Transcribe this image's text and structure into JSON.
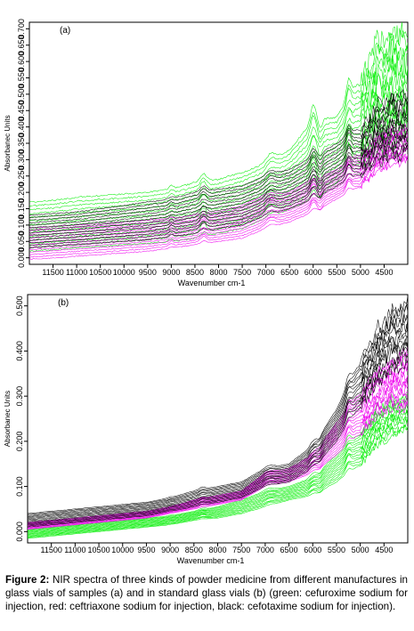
{
  "chart_data": [
    {
      "type": "line",
      "panel_label": "(a)",
      "xlabel": "Wavenumber cm-1",
      "ylabel": "Absorbanec Units",
      "xlim": [
        12000,
        4000
      ],
      "ylim": [
        -0.02,
        0.72
      ],
      "x_ticks": [
        11500,
        11000,
        10500,
        10000,
        9500,
        9000,
        8500,
        8000,
        7500,
        7000,
        6500,
        6000,
        5500,
        5000,
        4500
      ],
      "x_tick_labels": [
        "11500",
        "11000",
        "10500",
        "10000",
        "9500",
        "9000",
        "8500",
        "8000",
        "7500",
        "7000",
        "6500",
        "6000",
        "5500",
        "5000",
        "4500"
      ],
      "y_ticks": [
        0,
        0.05,
        0.1,
        0.15,
        0.2,
        0.25,
        0.3,
        0.35,
        0.4,
        0.45,
        0.5,
        0.55,
        0.6,
        0.65,
        0.7
      ],
      "y_tick_labels": [
        "0.000",
        "0.050",
        "0.100",
        "0.150",
        "0.200",
        "0.250",
        "0.300",
        "0.350",
        "0.400",
        "0.450",
        "0.500",
        "0.550",
        "0.600",
        "0.650",
        "0.700"
      ],
      "series": [
        {
          "color": "#00ee00",
          "x": [
            12000,
            11500,
            11000,
            10500,
            10000,
            9500,
            9000,
            8500,
            8000,
            7500,
            7000,
            6500,
            6000,
            5500,
            5000,
            4500,
            4000
          ],
          "y_min": [
            0.02,
            0.025,
            0.03,
            0.035,
            0.04,
            0.045,
            0.05,
            0.06,
            0.075,
            0.09,
            0.12,
            0.15,
            0.18,
            0.23,
            0.3,
            0.35,
            0.38
          ],
          "y_max": [
            0.17,
            0.175,
            0.185,
            0.19,
            0.195,
            0.2,
            0.21,
            0.23,
            0.24,
            0.26,
            0.29,
            0.33,
            0.42,
            0.43,
            0.55,
            0.66,
            0.69
          ]
        },
        {
          "color": "#ee00ee",
          "x": [
            12000,
            11500,
            11000,
            10500,
            10000,
            9500,
            9000,
            8500,
            8000,
            7500,
            7000,
            6500,
            6000,
            5500,
            5000,
            4500,
            4000
          ],
          "y_min": [
            -0.005,
            0.0,
            0.005,
            0.01,
            0.015,
            0.02,
            0.03,
            0.04,
            0.05,
            0.06,
            0.09,
            0.11,
            0.14,
            0.18,
            0.22,
            0.27,
            0.3
          ],
          "y_max": [
            0.09,
            0.095,
            0.1,
            0.105,
            0.11,
            0.115,
            0.12,
            0.13,
            0.14,
            0.16,
            0.19,
            0.2,
            0.24,
            0.27,
            0.32,
            0.38,
            0.4
          ]
        },
        {
          "color": "#000000",
          "x": [
            12000,
            11500,
            11000,
            10500,
            10000,
            9500,
            9000,
            8500,
            8000,
            7500,
            7000,
            6500,
            6000,
            5500,
            5000,
            4500,
            4000
          ],
          "y_min": [
            0.03,
            0.035,
            0.04,
            0.045,
            0.05,
            0.055,
            0.065,
            0.075,
            0.09,
            0.1,
            0.13,
            0.15,
            0.18,
            0.22,
            0.26,
            0.3,
            0.32
          ],
          "y_max": [
            0.13,
            0.135,
            0.14,
            0.15,
            0.16,
            0.17,
            0.18,
            0.2,
            0.21,
            0.22,
            0.25,
            0.27,
            0.31,
            0.35,
            0.4,
            0.47,
            0.5
          ]
        }
      ]
    },
    {
      "type": "line",
      "panel_label": "(b)",
      "xlabel": "Wavenumber cm-1",
      "ylabel": "Absorbanec Units",
      "xlim": [
        12000,
        4000
      ],
      "ylim": [
        -0.025,
        0.525
      ],
      "x_ticks": [
        11500,
        11000,
        10500,
        10000,
        9500,
        9000,
        8500,
        8000,
        7500,
        7000,
        6500,
        6000,
        5500,
        5000,
        4500
      ],
      "x_tick_labels": [
        "11500",
        "11000",
        "10500",
        "10000",
        "9500",
        "9000",
        "8500",
        "8000",
        "7500",
        "7000",
        "6500",
        "6000",
        "5500",
        "5000",
        "4500"
      ],
      "y_ticks": [
        0,
        0.1,
        0.2,
        0.3,
        0.4,
        0.5
      ],
      "y_tick_labels": [
        "0.000",
        "0.100",
        "0.200",
        "0.300",
        "0.400",
        "0.500"
      ],
      "series": [
        {
          "color": "#00ee00",
          "x": [
            12000,
            11500,
            11000,
            10500,
            10000,
            9500,
            9000,
            8500,
            8000,
            7500,
            7000,
            6500,
            6000,
            5500,
            5000,
            4500,
            4000
          ],
          "y_min": [
            -0.015,
            -0.01,
            -0.005,
            0.0,
            0.005,
            0.01,
            0.015,
            0.025,
            0.03,
            0.04,
            0.055,
            0.07,
            0.08,
            0.11,
            0.15,
            0.2,
            0.23
          ],
          "y_max": [
            0.005,
            0.01,
            0.015,
            0.02,
            0.025,
            0.03,
            0.035,
            0.045,
            0.055,
            0.07,
            0.09,
            0.1,
            0.12,
            0.17,
            0.22,
            0.28,
            0.3
          ]
        },
        {
          "color": "#ee00ee",
          "x": [
            12000,
            11500,
            11000,
            10500,
            10000,
            9500,
            9000,
            8500,
            8000,
            7500,
            7000,
            6500,
            6000,
            5500,
            5000,
            4500,
            4000
          ],
          "y_min": [
            0.005,
            0.01,
            0.015,
            0.02,
            0.025,
            0.03,
            0.04,
            0.05,
            0.06,
            0.07,
            0.1,
            0.11,
            0.13,
            0.17,
            0.22,
            0.26,
            0.28
          ],
          "y_max": [
            0.02,
            0.025,
            0.03,
            0.035,
            0.04,
            0.045,
            0.055,
            0.07,
            0.08,
            0.09,
            0.13,
            0.14,
            0.17,
            0.24,
            0.31,
            0.36,
            0.4
          ]
        },
        {
          "color": "#000000",
          "x": [
            12000,
            11500,
            11000,
            10500,
            10000,
            9500,
            9000,
            8500,
            8000,
            7500,
            7000,
            6500,
            6000,
            5500,
            5000,
            4500,
            4000
          ],
          "y_min": [
            0.01,
            0.015,
            0.02,
            0.025,
            0.03,
            0.035,
            0.045,
            0.055,
            0.065,
            0.075,
            0.1,
            0.11,
            0.14,
            0.2,
            0.28,
            0.34,
            0.38
          ],
          "y_max": [
            0.04,
            0.045,
            0.05,
            0.055,
            0.06,
            0.065,
            0.075,
            0.09,
            0.1,
            0.11,
            0.14,
            0.15,
            0.19,
            0.27,
            0.38,
            0.46,
            0.51
          ]
        }
      ]
    }
  ],
  "caption": {
    "label": "Figure 2:",
    "text": " NIR spectra of three kinds of powder medicine from different manufactures in glass vials of samples (a) and in standard glass vials (b) (green: cefuroxime sodium for injection, red: ceftriaxone sodium for injection, black: cefotaxime sodium for injection)."
  }
}
